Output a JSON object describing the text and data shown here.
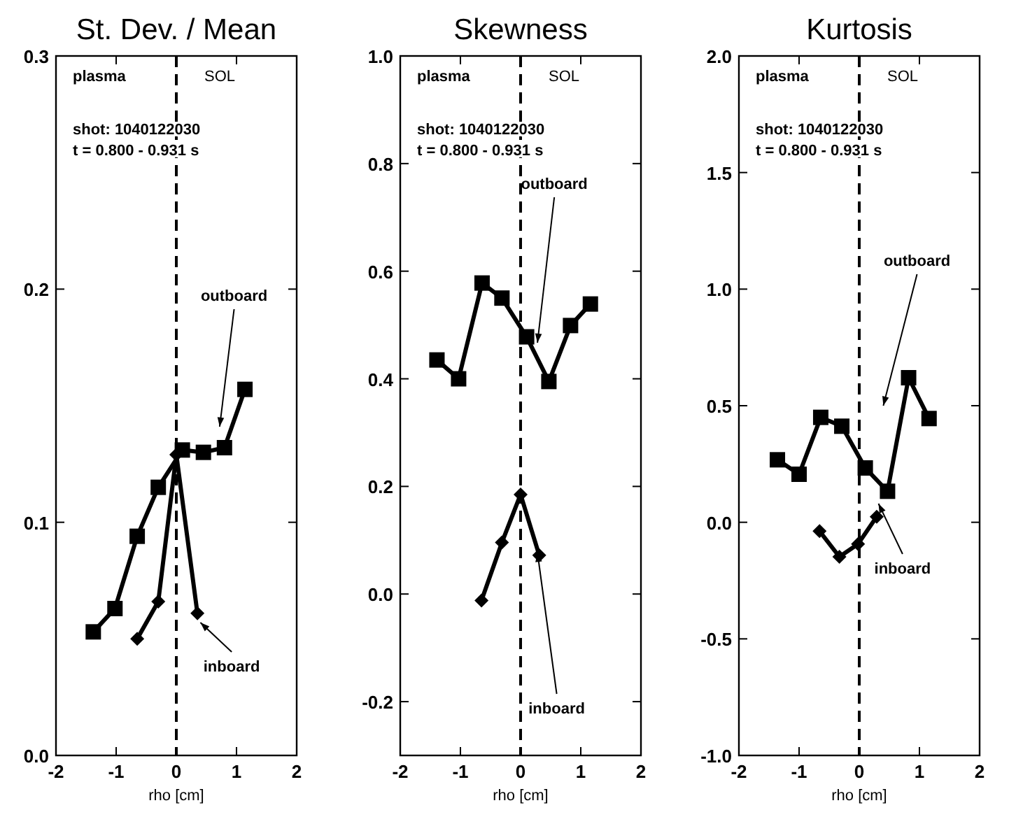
{
  "chart_data": [
    {
      "type": "line",
      "title": "St. Dev. / Mean",
      "xlabel": "rho [cm]",
      "xlim": [
        -2,
        2
      ],
      "xticks": [
        -2,
        -1,
        0,
        1,
        2
      ],
      "ylim": [
        0,
        0.3
      ],
      "yticks": [
        {
          "value": 0,
          "label": "0.0"
        },
        0.1,
        0.2,
        0.3
      ],
      "grid": false,
      "annotations": [
        "plasma",
        "SOL",
        "shot: 1040122030",
        "t = 0.800 - 0.931 s"
      ],
      "ref_lines": [
        {
          "axis": "x",
          "value": 0,
          "color": "#000000",
          "line_style": "dashed"
        }
      ],
      "series": [
        {
          "name": "outboard",
          "color": "#000000",
          "marker": "square",
          "line_style": "solid",
          "x": [
            -1.38,
            -1.02,
            -0.65,
            -0.3,
            0.1,
            0.45,
            0.8,
            1.14
          ],
          "values": [
            0.053,
            0.063,
            0.094,
            0.115,
            0.131,
            0.13,
            0.132,
            0.157
          ]
        },
        {
          "name": "inboard",
          "color": "#000000",
          "marker": "diamond",
          "line_style": "solid",
          "x": [
            -0.65,
            -0.3,
            0,
            0.35
          ],
          "values": [
            0.05,
            0.066,
            0.129,
            0.061
          ]
        }
      ]
    },
    {
      "type": "line",
      "title": "Skewness",
      "xlabel": "rho [cm]",
      "xlim": [
        -2,
        2
      ],
      "xticks": [
        -2,
        -1,
        0,
        1,
        2
      ],
      "ylim": [
        -0.3,
        1
      ],
      "yticks": [
        -0.2,
        {
          "value": 0,
          "label": "0.0"
        },
        0.2,
        0.4,
        0.6,
        0.8,
        {
          "value": 1,
          "label": "1.0"
        }
      ],
      "grid": false,
      "annotations": [
        "plasma",
        "SOL",
        "shot: 1040122030",
        "t = 0.800 - 0.931 s"
      ],
      "ref_lines": [
        {
          "axis": "x",
          "value": 0,
          "color": "#000000",
          "line_style": "dashed"
        }
      ],
      "series": [
        {
          "name": "outboard",
          "color": "#000000",
          "marker": "square",
          "line_style": "solid",
          "x": [
            -1.39,
            -1.03,
            -0.64,
            -0.31,
            0.1,
            0.47,
            0.83,
            1.16
          ],
          "values": [
            0.435,
            0.4,
            0.578,
            0.55,
            0.478,
            0.395,
            0.499,
            0.539
          ]
        },
        {
          "name": "inboard",
          "color": "#000000",
          "marker": "diamond",
          "line_style": "solid",
          "x": [
            -0.65,
            -0.31,
            0,
            0.31
          ],
          "values": [
            -0.012,
            0.096,
            0.185,
            0.072
          ]
        }
      ]
    },
    {
      "type": "line",
      "title": "Kurtosis",
      "xlabel": "rho [cm]",
      "xlim": [
        -2,
        2
      ],
      "xticks": [
        -2,
        -1,
        0,
        1,
        2
      ],
      "ylim": [
        -1,
        2
      ],
      "yticks": [
        {
          "value": -1,
          "label": "-1.0"
        },
        -0.5,
        {
          "value": 0,
          "label": "0.0"
        },
        0.5,
        {
          "value": 1,
          "label": "1.0"
        },
        1.5,
        {
          "value": 2,
          "label": "2.0"
        }
      ],
      "grid": false,
      "annotations": [
        "plasma",
        "SOL",
        "shot: 1040122030",
        "t = 0.800 - 0.931 s"
      ],
      "ref_lines": [
        {
          "axis": "x",
          "value": 0,
          "color": "#000000",
          "line_style": "dashed"
        }
      ],
      "series": [
        {
          "name": "outboard",
          "color": "#000000",
          "marker": "square",
          "line_style": "solid",
          "x": [
            -1.36,
            -1,
            -0.64,
            -0.29,
            0.1,
            0.47,
            0.82,
            1.16
          ],
          "values": [
            0.268,
            0.206,
            0.45,
            0.412,
            0.233,
            0.133,
            0.62,
            0.445
          ]
        },
        {
          "name": "inboard",
          "color": "#000000",
          "marker": "diamond",
          "line_style": "solid",
          "x": [
            -0.66,
            -0.33,
            -0.02,
            0.29
          ],
          "values": [
            -0.038,
            -0.148,
            -0.093,
            0.024
          ]
        }
      ]
    }
  ]
}
